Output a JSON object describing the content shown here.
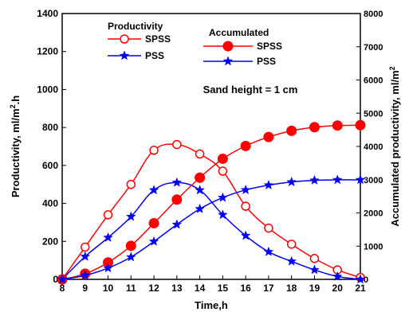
{
  "chart_data": {
    "type": "line",
    "title": "",
    "xlabel": "Time,h",
    "ylabel": "Productivity, ml/m2.h",
    "y2label": "Accumulated productivity, ml/m2",
    "x": [
      8,
      9,
      10,
      11,
      12,
      13,
      14,
      15,
      16,
      17,
      18,
      19,
      20,
      21
    ],
    "xlim": [
      8,
      21
    ],
    "ylim": [
      0,
      1400
    ],
    "y2lim": [
      0,
      8000
    ],
    "x_ticks": [
      8,
      9,
      10,
      11,
      12,
      13,
      14,
      15,
      16,
      17,
      18,
      19,
      20,
      21
    ],
    "y_ticks": [
      0,
      200,
      400,
      600,
      800,
      1000,
      1200,
      1400
    ],
    "y2_ticks": [
      0,
      1000,
      2000,
      3000,
      4000,
      5000,
      6000,
      7000,
      8000
    ],
    "annotation": "Sand height = 1 cm",
    "legend": {
      "productivity_title": "Productivity",
      "accumulated_title": "Accumulated",
      "placement": "top"
    },
    "colors": {
      "spss": "#ff0000",
      "pss": "#0000ff"
    },
    "series": [
      {
        "name": "SPSS",
        "group": "Productivity",
        "axis": "left",
        "marker": "open-circle",
        "color": "#ff0000",
        "values": [
          0,
          170,
          340,
          500,
          680,
          710,
          660,
          570,
          385,
          270,
          185,
          110,
          50,
          10
        ]
      },
      {
        "name": "PSS",
        "group": "Productivity",
        "axis": "left",
        "marker": "star",
        "color": "#0000ff",
        "values": [
          0,
          120,
          220,
          330,
          470,
          510,
          470,
          340,
          230,
          145,
          95,
          50,
          15,
          0
        ]
      },
      {
        "name": "SPSS",
        "group": "Accumulated",
        "axis": "right",
        "marker": "filled-circle",
        "color": "#ff0000",
        "values": [
          0,
          170,
          510,
          1010,
          1690,
          2400,
          3060,
          3630,
          4015,
          4285,
          4470,
          4580,
          4630,
          4640
        ]
      },
      {
        "name": "PSS",
        "group": "Accumulated",
        "axis": "right",
        "marker": "star",
        "color": "#0000ff",
        "values": [
          0,
          120,
          340,
          670,
          1140,
          1650,
          2120,
          2460,
          2690,
          2835,
          2930,
          2980,
          2995,
          2995
        ]
      }
    ]
  }
}
